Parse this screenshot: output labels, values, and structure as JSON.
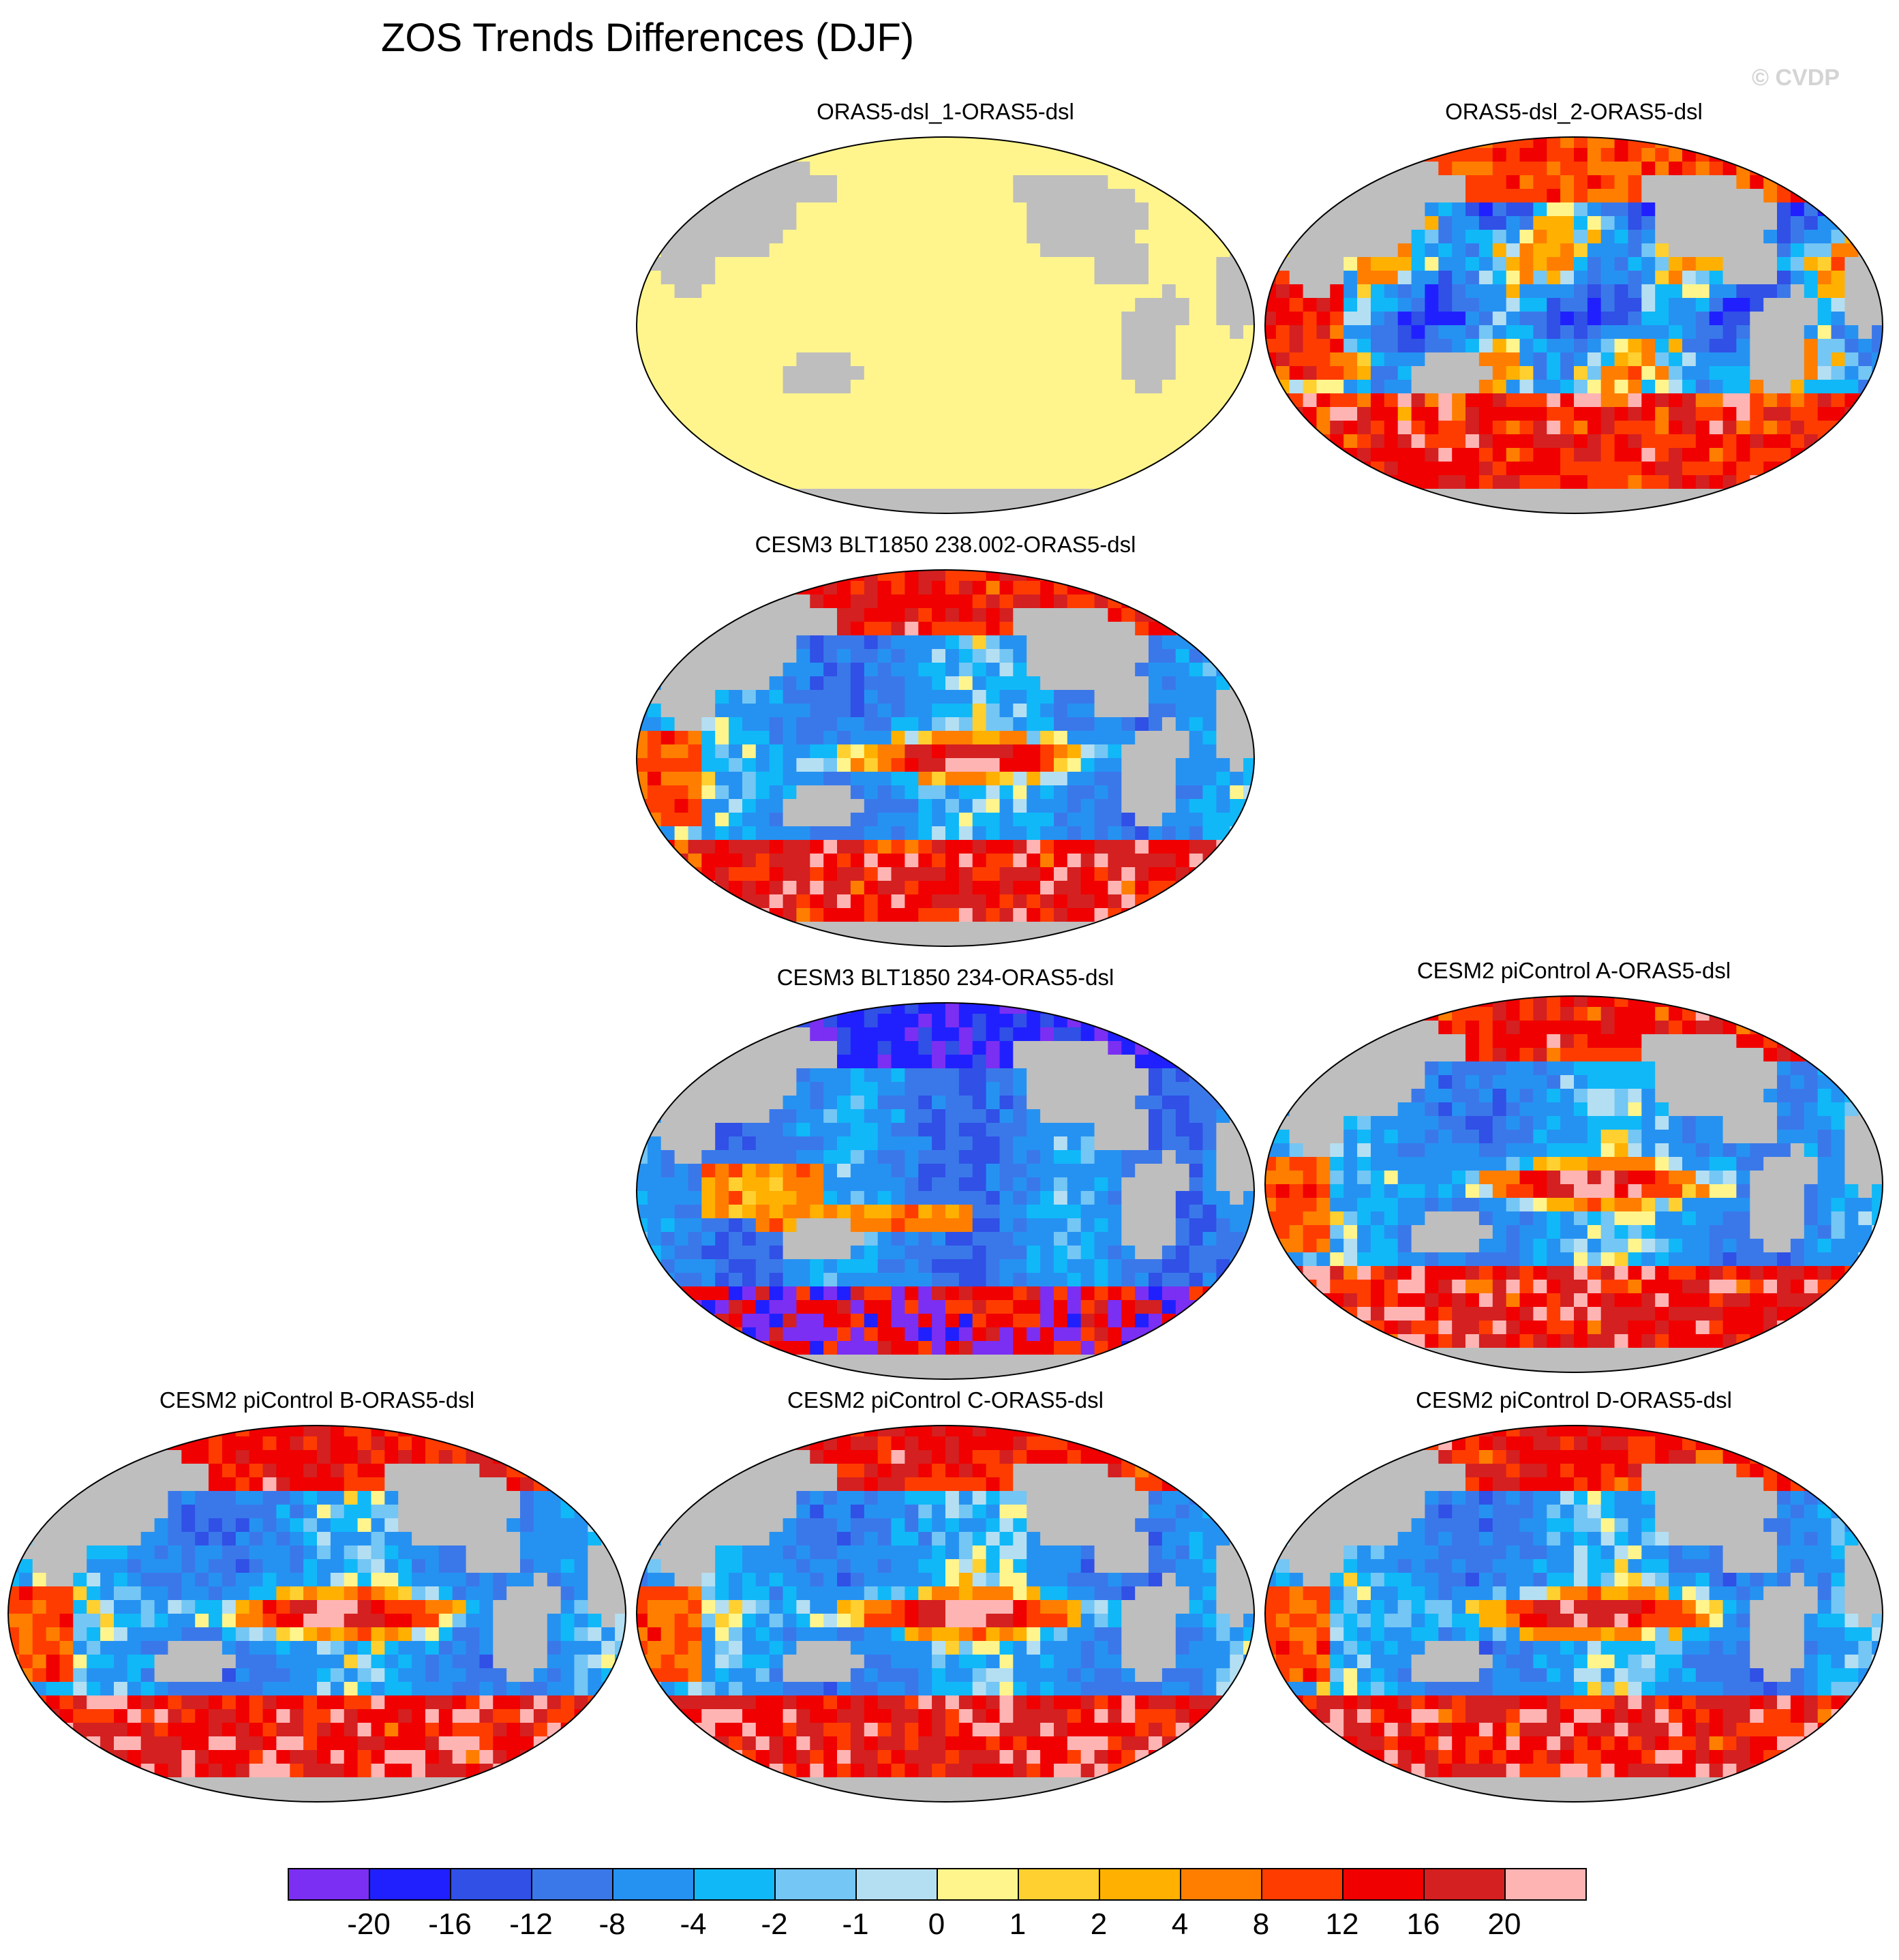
{
  "title": "ZOS Trends Differences (DJF)",
  "watermark": "© CVDP",
  "colors": {
    "land": "#bebebe",
    "missing": "#ffffff",
    "levels": [
      "#7b2ff2",
      "#2020ff",
      "#3050e6",
      "#3a78ea",
      "#2592f2",
      "#10b8f8",
      "#74c6f4",
      "#b4dff2",
      "#fff58c",
      "#ffd030",
      "#ffb000",
      "#ff7e00",
      "#ff3c00",
      "#f00000",
      "#d42020",
      "#ffb4b4"
    ]
  },
  "colorbar": {
    "labels": [
      "-20",
      "-16",
      "-12",
      "-8",
      "-4",
      "-2",
      "-1",
      "0",
      "1",
      "2",
      "4",
      "8",
      "12",
      "16",
      "20"
    ]
  },
  "panels": [
    {
      "id": "p1",
      "title": "ORAS5-dsl_1-ORAS5-dsl",
      "pattern": "flat"
    },
    {
      "id": "p2",
      "title": "ORAS5-dsl_2-ORAS5-dsl",
      "pattern": "noisy"
    },
    {
      "id": "p3",
      "title": "CESM3 BLT1850 238.002-ORAS5-dsl",
      "pattern": "elnino"
    },
    {
      "id": "p4",
      "title": "CESM3 BLT1850 234-ORAS5-dsl",
      "pattern": "cool"
    },
    {
      "id": "p5",
      "title": "CESM2 piControl A-ORAS5-dsl",
      "pattern": "elnino"
    },
    {
      "id": "p6",
      "title": "CESM2 piControl B-ORAS5-dsl",
      "pattern": "elnino"
    },
    {
      "id": "p7",
      "title": "CESM2 piControl C-ORAS5-dsl",
      "pattern": "elnino"
    },
    {
      "id": "p8",
      "title": "CESM2 piControl D-ORAS5-dsl",
      "pattern": "elnino"
    }
  ]
}
